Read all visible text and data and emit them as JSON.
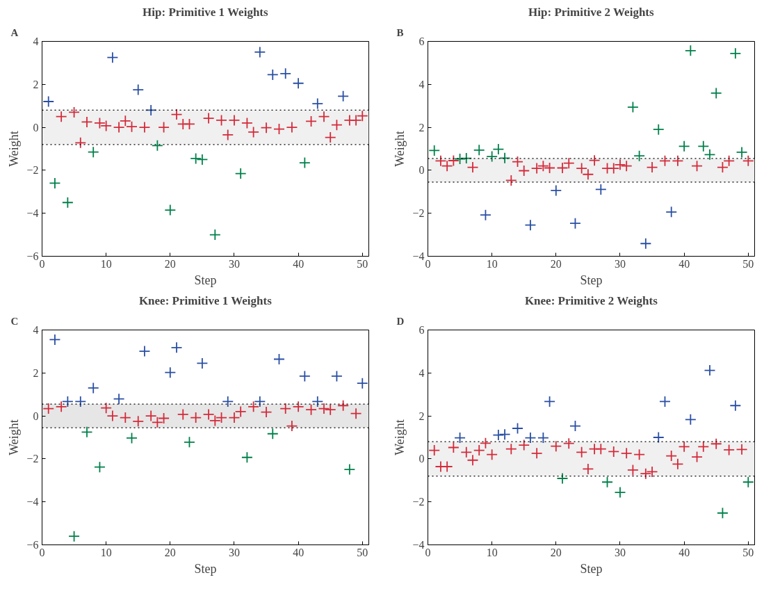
{
  "chart_data": [
    {
      "type": "scatter",
      "title": "Hip: Primitive 1 Weights",
      "xlabel": "Step",
      "ylabel": "Weight",
      "annotations": [
        "A"
      ],
      "marker": "cross",
      "grid": false,
      "xlim": [
        0,
        51
      ],
      "xticks": [
        0,
        10,
        20,
        30,
        40,
        50
      ],
      "ylim": [
        -6,
        4
      ],
      "yticks": [
        -6,
        -4,
        -2,
        0,
        2,
        4
      ],
      "bands": [
        {
          "axis": "y",
          "from": -0.8,
          "to": 0.8,
          "color": "#f0f0f0"
        }
      ],
      "ref_lines": [
        {
          "axis": "y",
          "value": -0.8,
          "color": "#000000",
          "line_style": "dotted"
        },
        {
          "axis": "y",
          "value": 0.8,
          "color": "#000000",
          "line_style": "dotted"
        }
      ],
      "series": [
        {
          "color": "#2a4fa3",
          "x": [
            1,
            11,
            15,
            17,
            34,
            36,
            38,
            40,
            43,
            47
          ],
          "values": [
            1.2,
            3.25,
            1.75,
            0.8,
            3.5,
            2.45,
            2.5,
            2.05,
            1.1,
            1.45
          ]
        },
        {
          "color": "#00804a",
          "x": [
            2,
            4,
            8,
            18,
            20,
            24,
            25,
            27,
            31,
            41
          ],
          "values": [
            -2.6,
            -3.5,
            -1.15,
            -0.85,
            -3.85,
            -1.45,
            -1.5,
            -5.0,
            -2.15,
            -1.65
          ]
        },
        {
          "color": "#d42a3a",
          "x": [
            3,
            5,
            6,
            7,
            9,
            10,
            12,
            13,
            14,
            16,
            19,
            21,
            22,
            23,
            26,
            28,
            29,
            30,
            32,
            33,
            35,
            37,
            39,
            42,
            44,
            45,
            46,
            48,
            49,
            50
          ],
          "values": [
            0.5,
            0.7,
            -0.72,
            0.25,
            0.2,
            0.07,
            0,
            0.3,
            0.03,
            0,
            0,
            0.6,
            0.15,
            0.15,
            0.42,
            0.33,
            -0.35,
            0.33,
            0.2,
            -0.22,
            -0.02,
            -0.08,
            0,
            0.28,
            0.5,
            -0.47,
            0.11,
            0.33,
            0.33,
            0.53
          ]
        }
      ]
    },
    {
      "type": "scatter",
      "title": "Hip: Primitive 2 Weights",
      "xlabel": "Step",
      "ylabel": "Weight",
      "annotations": [
        "B"
      ],
      "marker": "cross",
      "grid": false,
      "xlim": [
        0,
        51
      ],
      "xticks": [
        0,
        10,
        20,
        30,
        40,
        50
      ],
      "ylim": [
        -4,
        6
      ],
      "yticks": [
        -4,
        -2,
        0,
        2,
        4,
        6
      ],
      "bands": [
        {
          "axis": "y",
          "from": -0.55,
          "to": 0.55,
          "color": "#f0f0f0"
        }
      ],
      "ref_lines": [
        {
          "axis": "y",
          "value": -0.55,
          "color": "#000000",
          "line_style": "dotted"
        },
        {
          "axis": "y",
          "value": 0.55,
          "color": "#000000",
          "line_style": "dotted"
        }
      ],
      "series": [
        {
          "color": "#2a4fa3",
          "x": [
            9,
            16,
            20,
            23,
            27,
            34,
            38
          ],
          "values": [
            -2.08,
            -2.55,
            -0.94,
            -2.47,
            -0.89,
            -3.41,
            -1.94
          ]
        },
        {
          "color": "#00804a",
          "x": [
            1,
            5,
            6,
            8,
            10,
            11,
            12,
            32,
            33,
            36,
            40,
            41,
            43,
            44,
            45,
            48,
            49
          ],
          "values": [
            0.92,
            0.53,
            0.56,
            0.94,
            0.64,
            0.98,
            0.57,
            2.94,
            0.67,
            1.9,
            1.12,
            5.57,
            1.12,
            0.73,
            3.59,
            5.44,
            0.84
          ]
        },
        {
          "color": "#d42a3a",
          "x": [
            2,
            3,
            4,
            7,
            13,
            14,
            15,
            17,
            18,
            19,
            21,
            22,
            24,
            25,
            26,
            28,
            29,
            30,
            31,
            35,
            37,
            39,
            42,
            46,
            47,
            50
          ],
          "values": [
            0.44,
            0.2,
            0.45,
            0.14,
            -0.47,
            0.4,
            -0.02,
            0.09,
            0.2,
            0.11,
            0.11,
            0.33,
            0.09,
            -0.19,
            0.46,
            0.09,
            0.09,
            0.26,
            0.2,
            0.14,
            0.44,
            0.44,
            0.2,
            0.14,
            0.44,
            0.44
          ]
        }
      ]
    },
    {
      "type": "scatter",
      "title": "Knee: Primitive 1 Weights",
      "xlabel": "Step",
      "ylabel": "Weight",
      "annotations": [
        "C"
      ],
      "marker": "cross",
      "grid": false,
      "xlim": [
        0,
        51
      ],
      "xticks": [
        0,
        10,
        20,
        30,
        40,
        50
      ],
      "ylim": [
        -6,
        4
      ],
      "yticks": [
        -6,
        -4,
        -2,
        0,
        2,
        4
      ],
      "bands": [
        {
          "axis": "y",
          "from": -0.55,
          "to": 0.55,
          "color": "#e6e6e6"
        }
      ],
      "ref_lines": [
        {
          "axis": "y",
          "value": -0.55,
          "color": "#000000",
          "line_style": "dotted"
        },
        {
          "axis": "y",
          "value": 0.55,
          "color": "#000000",
          "line_style": "dotted"
        }
      ],
      "series": [
        {
          "color": "#2a4fa3",
          "x": [
            2,
            4,
            6,
            8,
            12,
            16,
            20,
            21,
            25,
            29,
            34,
            37,
            41,
            43,
            46,
            50
          ],
          "values": [
            3.55,
            0.67,
            0.67,
            1.3,
            0.79,
            3.01,
            2.02,
            3.18,
            2.45,
            0.67,
            0.67,
            2.64,
            1.85,
            0.67,
            1.85,
            1.52
          ]
        },
        {
          "color": "#00804a",
          "x": [
            5,
            7,
            9,
            14,
            23,
            32,
            36,
            48
          ],
          "values": [
            -5.6,
            -0.75,
            -2.38,
            -1.03,
            -1.22,
            -1.93,
            -0.83,
            -2.49
          ]
        },
        {
          "color": "#d42a3a",
          "x": [
            1,
            3,
            10,
            11,
            13,
            15,
            17,
            18,
            19,
            22,
            24,
            26,
            27,
            28,
            30,
            31,
            33,
            35,
            38,
            39,
            40,
            42,
            44,
            45,
            47,
            49
          ],
          "values": [
            0.34,
            0.43,
            0.37,
            0,
            -0.08,
            -0.25,
            0,
            -0.3,
            -0.11,
            0.07,
            -0.08,
            0.07,
            -0.22,
            -0.08,
            -0.08,
            0.2,
            0.43,
            0.18,
            0.34,
            -0.47,
            0.43,
            0.29,
            0.34,
            0.29,
            0.48,
            0.11
          ]
        }
      ]
    },
    {
      "type": "scatter",
      "title": "Knee: Primitive 2 Weights",
      "xlabel": "Step",
      "ylabel": "Weight",
      "annotations": [
        "D"
      ],
      "marker": "cross",
      "grid": false,
      "xlim": [
        0,
        51
      ],
      "xticks": [
        0,
        10,
        20,
        30,
        40,
        50
      ],
      "ylim": [
        -4,
        6
      ],
      "yticks": [
        -4,
        -2,
        0,
        2,
        4,
        6
      ],
      "bands": [
        {
          "axis": "y",
          "from": -0.8,
          "to": 0.8,
          "color": "#f0f0f0"
        }
      ],
      "ref_lines": [
        {
          "axis": "y",
          "value": -0.8,
          "color": "#000000",
          "line_style": "dotted"
        },
        {
          "axis": "y",
          "value": 0.8,
          "color": "#000000",
          "line_style": "dotted"
        }
      ],
      "series": [
        {
          "color": "#2a4fa3",
          "x": [
            5,
            11,
            12,
            14,
            16,
            18,
            19,
            23,
            36,
            37,
            41,
            44,
            48
          ],
          "values": [
            0.98,
            1.11,
            1.14,
            1.42,
            0.98,
            0.98,
            2.67,
            1.53,
            1.0,
            2.67,
            1.83,
            4.12,
            2.48
          ]
        },
        {
          "color": "#00804a",
          "x": [
            21,
            28,
            30,
            46,
            50
          ],
          "values": [
            -0.91,
            -1.08,
            -1.56,
            -2.52,
            -1.08
          ]
        },
        {
          "color": "#d42a3a",
          "x": [
            1,
            2,
            3,
            4,
            6,
            7,
            8,
            9,
            10,
            13,
            15,
            17,
            20,
            22,
            24,
            25,
            26,
            27,
            29,
            31,
            32,
            33,
            34,
            35,
            38,
            39,
            40,
            42,
            43,
            45,
            47,
            49
          ],
          "values": [
            0.4,
            -0.36,
            -0.36,
            0.53,
            0.31,
            -0.06,
            0.4,
            0.73,
            0.2,
            0.46,
            0.64,
            0.26,
            0.59,
            0.72,
            0.31,
            -0.47,
            0.46,
            0.46,
            0.34,
            0.26,
            -0.52,
            0.2,
            -0.69,
            -0.6,
            0.14,
            -0.24,
            0.57,
            0.09,
            0.57,
            0.7,
            0.42,
            0.44
          ]
        }
      ]
    }
  ]
}
